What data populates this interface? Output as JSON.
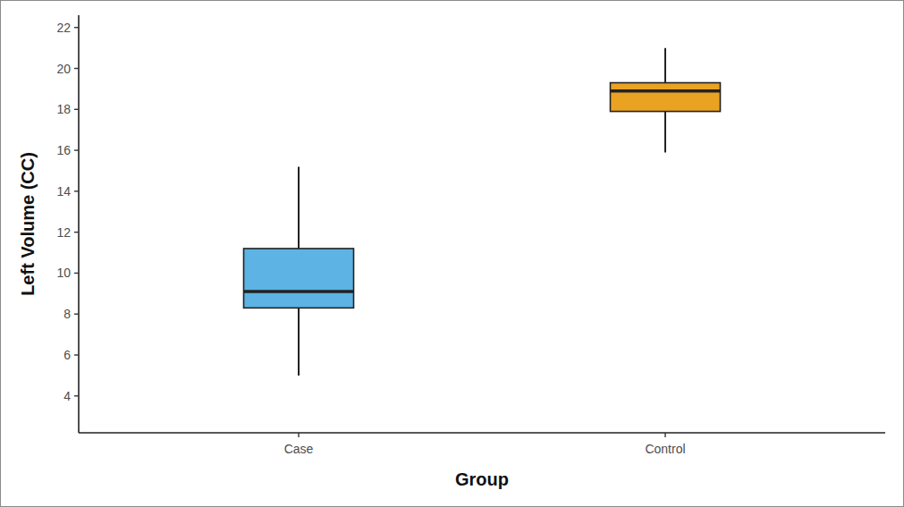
{
  "chart_data": {
    "type": "box",
    "x_label": "Group",
    "y_label": "Left Volume (CC)",
    "categories": [
      "Case",
      "Control"
    ],
    "values": [
      {
        "min": 5.0,
        "q1": 8.3,
        "median": 9.1,
        "q3": 11.2,
        "max": 15.2
      },
      {
        "min": 15.9,
        "q1": 17.9,
        "median": 18.9,
        "q3": 19.3,
        "max": 21.0
      }
    ],
    "colors": [
      "#5cb3e4",
      "#e9a222"
    ],
    "ylim": [
      2.2,
      22.6
    ],
    "yticks": [
      4,
      6,
      8,
      10,
      12,
      14,
      16,
      18,
      20,
      22
    ],
    "grid": false
  }
}
